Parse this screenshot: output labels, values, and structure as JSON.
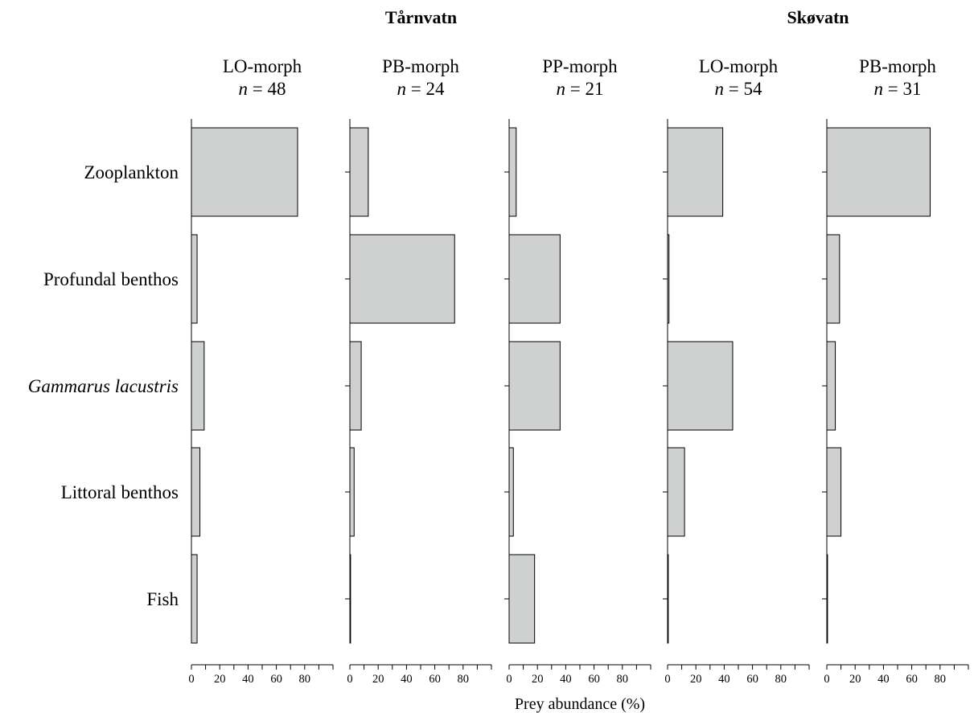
{
  "chart_data": {
    "type": "bar",
    "orientation": "horizontal",
    "lakes": [
      {
        "name": "Tårnvatn",
        "panels": [
          0,
          1,
          2
        ]
      },
      {
        "name": "Skøvatn",
        "panels": [
          3,
          4
        ]
      }
    ],
    "categories": [
      "Zooplankton",
      "Profundal benthos",
      "Gammarus lacustris",
      "Littoral benthos",
      "Fish"
    ],
    "italic_categories": [
      "Gammarus lacustris"
    ],
    "xlabel": "Prey abundance (%)",
    "xlim": [
      0,
      100
    ],
    "xticks": [
      0,
      20,
      40,
      60,
      80
    ],
    "n_prefix": "n",
    "n_sign": " = ",
    "panels": [
      {
        "lake": "Tårnvatn",
        "morph": "LO-morph",
        "n": "48",
        "values": [
          75,
          4,
          9,
          6,
          4
        ]
      },
      {
        "lake": "Tårnvatn",
        "morph": "PB-morph",
        "n": "24",
        "values": [
          13,
          74,
          8,
          3,
          0.5
        ]
      },
      {
        "lake": "Tårnvatn",
        "morph": "PP-morph",
        "n": "21",
        "values": [
          5,
          36,
          36,
          3,
          18
        ]
      },
      {
        "lake": "Skøvatn",
        "morph": "LO-morph",
        "n": "54",
        "values": [
          39,
          1,
          46,
          12,
          0.5
        ]
      },
      {
        "lake": "Skøvatn",
        "morph": "PB-morph",
        "n": "31",
        "values": [
          73,
          9,
          6,
          10,
          0.5
        ]
      }
    ]
  }
}
